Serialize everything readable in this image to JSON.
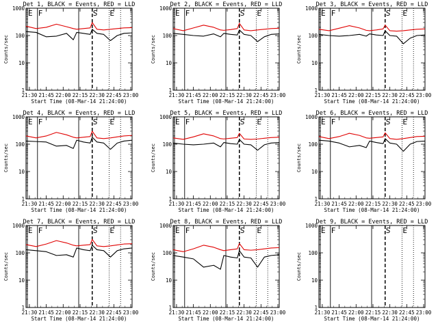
{
  "chart_data": {
    "type": "line",
    "layout": "3x3 grid",
    "shared": {
      "x_tick_labels": [
        "21:30",
        "21:45",
        "22:00",
        "22:15",
        "22:30",
        "22:45",
        "23:00"
      ],
      "x_tick_hours": [
        21.5,
        21.75,
        22.0,
        22.25,
        22.5,
        22.75,
        23.0
      ],
      "xlim": [
        21.45,
        23.02
      ],
      "xlabel": "Start Time (08-Mar-14 21:24:00)",
      "ylabel": "Counts/sec",
      "yscale": "log",
      "ylim": [
        1,
        1000
      ],
      "y_tick_labels": [
        "1",
        "10",
        "100",
        "1000"
      ],
      "series_names": [
        "Events",
        "LLD"
      ],
      "series_colors": {
        "Events": "#000000",
        "LLD": "#e00000"
      },
      "flags": [
        {
          "label": "E",
          "x": 21.47,
          "style": "solid"
        },
        {
          "label": "F",
          "x": 21.62,
          "style": "solid"
        },
        {
          "label": "S",
          "x": 22.43,
          "style": "dashed"
        },
        {
          "label": "E",
          "x": 22.68,
          "style": "dotted"
        },
        {
          "label": "",
          "x": 22.23,
          "style": "solid"
        },
        {
          "label": "",
          "x": 22.85,
          "style": "dotted"
        }
      ]
    },
    "panels": [
      {
        "title": "Det 1, BLACK = Events, RED = LLD",
        "x": [
          21.45,
          21.6,
          21.75,
          21.9,
          22.05,
          22.15,
          22.2,
          22.3,
          22.4,
          22.43,
          22.5,
          22.6,
          22.7,
          22.8,
          22.9,
          23.02
        ],
        "series": [
          {
            "name": "Events",
            "values": [
              140,
              130,
              90,
              95,
              120,
              70,
              130,
              120,
              110,
              170,
              120,
              110,
              65,
              100,
              120,
              125
            ]
          },
          {
            "name": "LLD",
            "values": [
              220,
              180,
              200,
              260,
              210,
              180,
              170,
              180,
              190,
              300,
              170,
              160,
              170,
              180,
              190,
              195
            ]
          }
        ]
      },
      {
        "title": "Det 2, BLACK = Events, RED = LLD",
        "x": [
          21.45,
          21.6,
          21.75,
          21.9,
          22.05,
          22.15,
          22.2,
          22.3,
          22.4,
          22.43,
          22.5,
          22.6,
          22.7,
          22.8,
          22.9,
          23.02
        ],
        "series": [
          {
            "name": "Events",
            "values": [
              120,
              110,
              100,
              95,
              115,
              90,
              120,
              110,
              105,
              160,
              110,
              100,
              60,
              90,
              110,
              115
            ]
          },
          {
            "name": "LLD",
            "values": [
              180,
              150,
              190,
              240,
              200,
              160,
              155,
              165,
              180,
              280,
              160,
              150,
              160,
              170,
              180,
              185
            ]
          }
        ]
      },
      {
        "title": "Det 3, BLACK = Events, RED = LLD",
        "x": [
          21.45,
          21.6,
          21.75,
          21.9,
          22.05,
          22.15,
          22.2,
          22.3,
          22.4,
          22.43,
          22.5,
          22.6,
          22.7,
          22.8,
          22.9,
          23.02
        ],
        "series": [
          {
            "name": "Events",
            "values": [
              110,
              100,
              95,
              100,
              110,
              95,
              115,
              105,
              100,
              150,
              100,
              95,
              50,
              80,
              100,
              105
            ]
          },
          {
            "name": "LLD",
            "values": [
              170,
              150,
              185,
              230,
              190,
              155,
              150,
              160,
              175,
              240,
              150,
              145,
              150,
              160,
              170,
              175
            ]
          }
        ]
      },
      {
        "title": "Det 4, BLACK = Events, RED = LLD",
        "x": [
          21.45,
          21.6,
          21.75,
          21.9,
          22.05,
          22.15,
          22.2,
          22.3,
          22.4,
          22.43,
          22.5,
          22.6,
          22.7,
          22.8,
          22.9,
          23.02
        ],
        "series": [
          {
            "name": "Events",
            "values": [
              130,
              125,
              120,
              85,
              90,
              70,
              140,
              120,
              110,
              180,
              120,
              110,
              65,
              110,
              130,
              140
            ]
          },
          {
            "name": "LLD",
            "values": [
              200,
              170,
              200,
              270,
              220,
              180,
              170,
              180,
              190,
              300,
              170,
              160,
              170,
              185,
              200,
              210
            ]
          }
        ]
      },
      {
        "title": "Det 5, BLACK = Events, RED = LLD",
        "x": [
          21.45,
          21.6,
          21.75,
          21.9,
          22.05,
          22.15,
          22.2,
          22.3,
          22.4,
          22.43,
          22.5,
          22.6,
          22.7,
          22.8,
          22.9,
          23.02
        ],
        "series": [
          {
            "name": "Events",
            "values": [
              110,
              100,
              95,
              100,
              110,
              80,
              115,
              105,
              100,
              150,
              100,
              95,
              60,
              95,
              110,
              115
            ]
          },
          {
            "name": "LLD",
            "values": [
              170,
              150,
              185,
              240,
              200,
              160,
              155,
              165,
              175,
              250,
              155,
              150,
              155,
              165,
              175,
              180
            ]
          }
        ]
      },
      {
        "title": "Det 6, BLACK = Events, RED = LLD",
        "x": [
          21.45,
          21.6,
          21.75,
          21.9,
          22.05,
          22.15,
          22.2,
          22.3,
          22.4,
          22.43,
          22.5,
          22.6,
          22.7,
          22.8,
          22.9,
          23.02
        ],
        "series": [
          {
            "name": "Events",
            "values": [
              140,
              130,
              110,
              80,
              90,
              75,
              130,
              115,
              105,
              160,
              110,
              100,
              55,
              100,
              125,
              130
            ]
          },
          {
            "name": "LLD",
            "values": [
              190,
              160,
              190,
              250,
              210,
              170,
              165,
              175,
              185,
              260,
              160,
              150,
              160,
              175,
              190,
              195
            ]
          }
        ]
      },
      {
        "title": "Det 7, BLACK = Events, RED = LLD",
        "x": [
          21.45,
          21.6,
          21.75,
          21.9,
          22.05,
          22.15,
          22.2,
          22.3,
          22.4,
          22.43,
          22.5,
          22.6,
          22.7,
          22.8,
          22.9,
          23.02
        ],
        "series": [
          {
            "name": "Events",
            "values": [
              130,
              120,
              110,
              80,
              85,
              70,
              150,
              130,
              120,
              190,
              130,
              120,
              70,
              120,
              140,
              150
            ]
          },
          {
            "name": "LLD",
            "values": [
              200,
              170,
              210,
              280,
              230,
              190,
              180,
              190,
              200,
              310,
              180,
              170,
              180,
              195,
              210,
              215
            ]
          }
        ]
      },
      {
        "title": "Det 8, BLACK = Events, RED = LLD",
        "x": [
          21.45,
          21.6,
          21.75,
          21.9,
          22.05,
          22.15,
          22.2,
          22.3,
          22.4,
          22.43,
          22.5,
          22.6,
          22.7,
          22.8,
          22.9,
          23.02
        ],
        "series": [
          {
            "name": "Events",
            "values": [
              80,
              70,
              60,
              30,
              35,
              25,
              80,
              70,
              65,
              120,
              70,
              65,
              30,
              70,
              80,
              85
            ]
          },
          {
            "name": "LLD",
            "values": [
              130,
              110,
              140,
              190,
              160,
              130,
              120,
              130,
              140,
              220,
              130,
              125,
              130,
              140,
              150,
              155
            ]
          }
        ]
      },
      {
        "title": "Det 9, BLACK = Events, RED = LLD",
        "x": [],
        "series": []
      }
    ]
  }
}
